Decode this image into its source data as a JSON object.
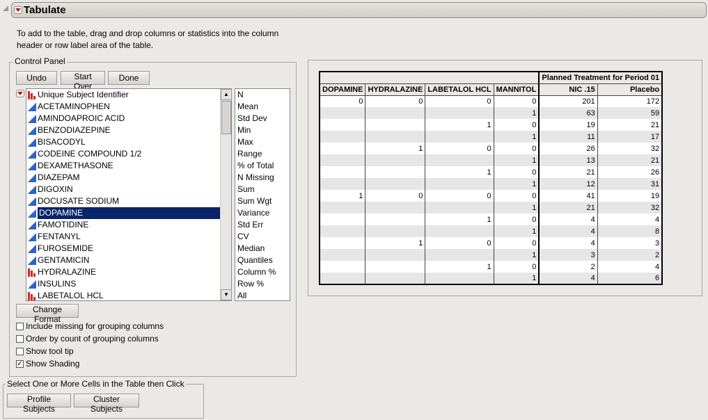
{
  "title": "Tabulate",
  "instructions": "To add to the table, drag and drop columns or statistics into the column header or row label area of the table.",
  "control_panel": {
    "label": "Control Panel",
    "buttons": {
      "undo": "Undo",
      "start_over": "Start Over",
      "done": "Done",
      "change_format": "Change Format"
    },
    "columns": [
      {
        "label": "Unique Subject Identifier",
        "type": "nominal"
      },
      {
        "label": "ACETAMINOPHEN",
        "type": "continuous"
      },
      {
        "label": "AMINDOAPROIC ACID",
        "type": "continuous"
      },
      {
        "label": "BENZODIAZEPINE",
        "type": "continuous"
      },
      {
        "label": "BISACODYL",
        "type": "continuous"
      },
      {
        "label": "CODEINE COMPOUND 1/2",
        "type": "continuous"
      },
      {
        "label": "DEXAMETHASONE",
        "type": "continuous"
      },
      {
        "label": "DIAZEPAM",
        "type": "continuous"
      },
      {
        "label": "DIGOXIN",
        "type": "continuous"
      },
      {
        "label": "DOCUSATE SODIUM",
        "type": "continuous"
      },
      {
        "label": "DOPAMINE",
        "type": "continuous",
        "selected": true
      },
      {
        "label": "FAMOTIDINE",
        "type": "continuous"
      },
      {
        "label": "FENTANYL",
        "type": "continuous"
      },
      {
        "label": "FUROSEMIDE",
        "type": "continuous"
      },
      {
        "label": "GENTAMICIN",
        "type": "continuous"
      },
      {
        "label": "HYDRALAZINE",
        "type": "nominal"
      },
      {
        "label": "INSULINS",
        "type": "continuous"
      },
      {
        "label": "LABETALOL HCL",
        "type": "nominal"
      }
    ],
    "statistics": [
      "N",
      "Mean",
      "Std Dev",
      "Min",
      "Max",
      "Range",
      "% of Total",
      "N Missing",
      "Sum",
      "Sum Wgt",
      "Variance",
      "Std Err",
      "CV",
      "Median",
      "Quantiles",
      "Column %",
      "Row %",
      "All"
    ],
    "options": [
      {
        "label": "Include missing for grouping columns",
        "checked": false
      },
      {
        "label": "Order by count of grouping columns",
        "checked": false
      },
      {
        "label": "Show tool tip",
        "checked": false
      },
      {
        "label": "Show Shading",
        "checked": true
      }
    ]
  },
  "select_group": {
    "label": "Select One or More Cells in the Table then Click",
    "profile": "Profile Subjects",
    "cluster": "Cluster Subjects"
  },
  "table": {
    "spanning_header": "Planned Treatment for Period 01",
    "headers": [
      "DOPAMINE",
      "HYDRALAZINE",
      "LABETALOL HCL",
      "MANNITOL",
      "NIC .15",
      "Placebo"
    ],
    "rows": [
      [
        "0",
        "0",
        "0",
        "0",
        "201",
        "172"
      ],
      [
        "",
        "",
        "",
        "1",
        "63",
        "59"
      ],
      [
        "",
        "",
        "1",
        "0",
        "19",
        "21"
      ],
      [
        "",
        "",
        "",
        "1",
        "11",
        "17"
      ],
      [
        "",
        "1",
        "0",
        "0",
        "26",
        "32"
      ],
      [
        "",
        "",
        "",
        "1",
        "13",
        "21"
      ],
      [
        "",
        "",
        "1",
        "0",
        "21",
        "26"
      ],
      [
        "",
        "",
        "",
        "1",
        "12",
        "31"
      ],
      [
        "1",
        "0",
        "0",
        "0",
        "41",
        "19"
      ],
      [
        "",
        "",
        "",
        "1",
        "21",
        "32"
      ],
      [
        "",
        "",
        "1",
        "0",
        "4",
        "4"
      ],
      [
        "",
        "",
        "",
        "1",
        "4",
        "8"
      ],
      [
        "",
        "1",
        "0",
        "0",
        "4",
        "3"
      ],
      [
        "",
        "",
        "",
        "1",
        "3",
        "2"
      ],
      [
        "",
        "",
        "1",
        "0",
        "2",
        "4"
      ],
      [
        "",
        "",
        "",
        "1",
        "4",
        "6"
      ]
    ]
  }
}
